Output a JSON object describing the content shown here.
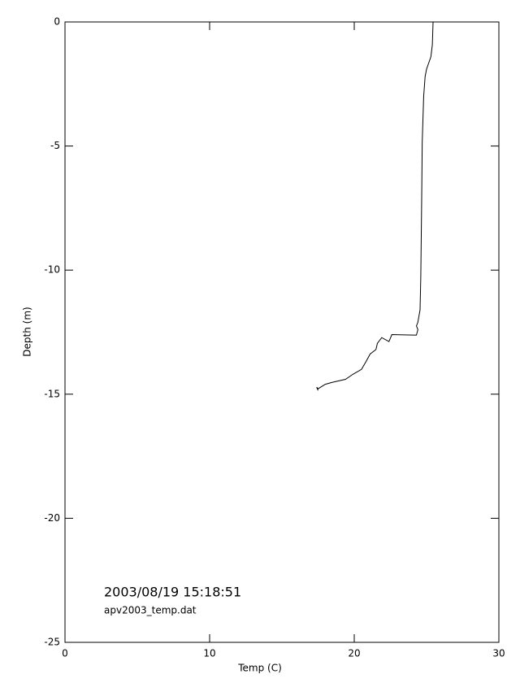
{
  "chart_data": {
    "type": "line",
    "xlabel": "Temp (C)",
    "ylabel": "Depth (m)",
    "annotations": [
      "2003/08/19 15:18:51",
      "apv2003_temp.dat"
    ],
    "x": [
      25.45,
      25.4,
      25.3,
      25.0,
      24.9,
      24.8,
      24.7,
      24.66,
      24.6,
      24.55,
      24.4,
      24.3,
      24.4,
      24.3,
      22.6,
      22.4,
      21.9,
      21.6,
      21.5,
      21.1,
      20.8,
      20.5,
      19.9,
      19.4,
      18.5,
      18.0,
      17.5,
      17.4,
      17.5
    ],
    "series": [
      {
        "color": "#000000",
        "values": [
          0,
          -0.92,
          -1.4,
          -1.9,
          -2.2,
          -3.0,
          -4.85,
          -7.3,
          -10.3,
          -11.6,
          -12.1,
          -12.25,
          -12.4,
          -12.62,
          -12.6,
          -12.88,
          -12.72,
          -12.95,
          -13.2,
          -13.38,
          -13.7,
          -14.0,
          -14.2,
          -14.4,
          -14.52,
          -14.6,
          -14.78,
          -14.72,
          -14.85
        ]
      }
    ],
    "xlim": [
      0,
      30
    ],
    "xticks": [
      0,
      10,
      20,
      30
    ],
    "ylim": [
      -25,
      0
    ],
    "yticks": [
      -25,
      -20,
      -15,
      -10,
      -5,
      0
    ]
  }
}
